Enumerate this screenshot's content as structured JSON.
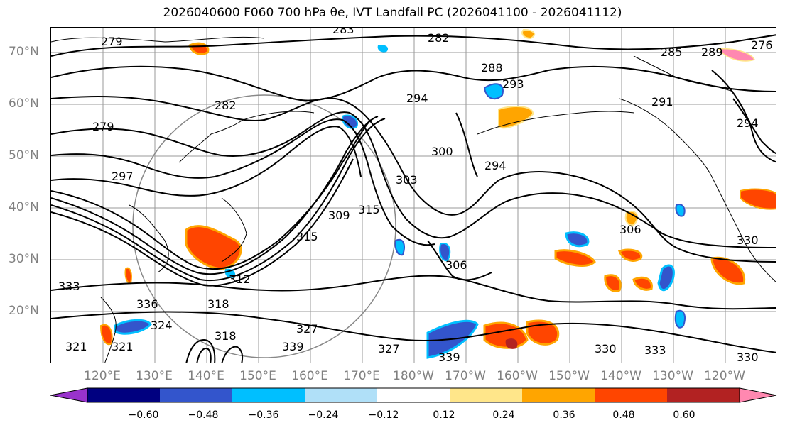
{
  "title": "2026040600 F060 700 hPa θe, IVT Landfall PC (2026041100 - 2026041112)",
  "lat_labels": [
    "70°N",
    "60°N",
    "50°N",
    "40°N",
    "30°N",
    "20°N"
  ],
  "lon_labels": [
    "120°E",
    "130°E",
    "140°E",
    "150°E",
    "160°E",
    "170°E",
    "180°W",
    "170°W",
    "160°W",
    "150°W",
    "140°W",
    "130°W",
    "120°W"
  ],
  "contour_labels": [
    "279",
    "283",
    "282",
    "285",
    "289",
    "276",
    "288",
    "293",
    "294",
    "291",
    "282",
    "294",
    "279",
    "300",
    "294",
    "297",
    "303",
    "309",
    "315",
    "306",
    "306",
    "315",
    "312",
    "318",
    "330",
    "333",
    "336",
    "324",
    "321",
    "327",
    "339",
    "327",
    "339",
    "333",
    "330",
    "318",
    "321",
    "330"
  ],
  "colorbar": {
    "colors": [
      "#9933cc",
      "#000080",
      "#3355cc",
      "#00bfff",
      "#b0e0f8",
      "#ffffff",
      "#ffe68a",
      "#ffa500",
      "#ff4500",
      "#b22222",
      "#ff88b0"
    ],
    "ticks": [
      "−0.60",
      "−0.48",
      "−0.36",
      "−0.24",
      "−0.12",
      "0.12",
      "0.24",
      "0.36",
      "0.48",
      "0.60"
    ]
  }
}
